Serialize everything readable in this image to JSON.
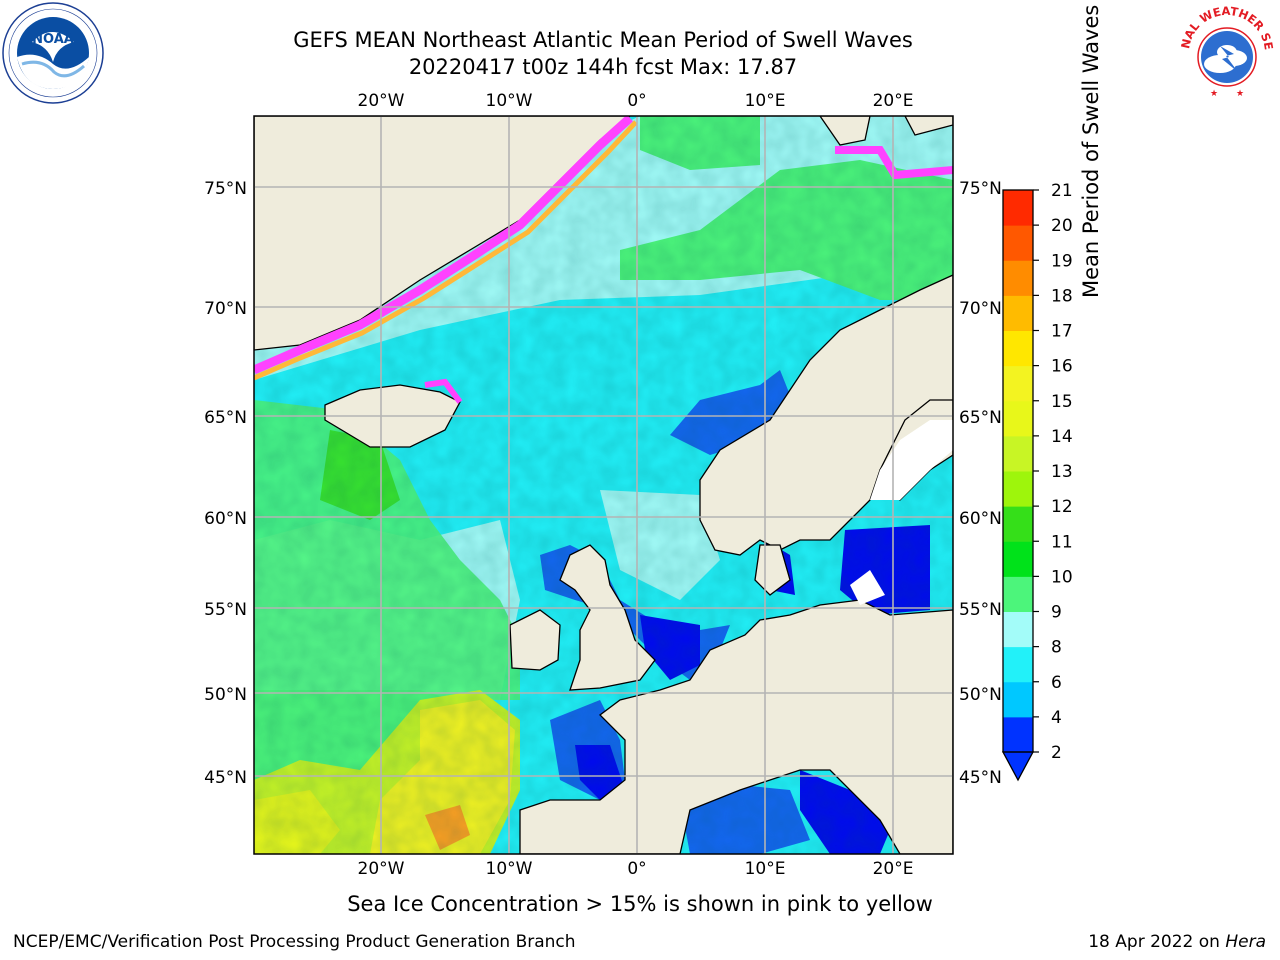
{
  "header": {
    "title_line1": "GEFS MEAN Northeast Atlantic Mean Period of Swell Waves",
    "title_line2": "20220417 t00z 144h fcst   Max: 17.87"
  },
  "map": {
    "lon_ticks_top": [
      "20°W",
      "10°W",
      "0°",
      "10°E",
      "20°E"
    ],
    "lon_ticks_bottom": [
      "20°W",
      "10°W",
      "0°",
      "10°E",
      "20°E"
    ],
    "lat_ticks_left": [
      "75°N",
      "70°N",
      "65°N",
      "60°N",
      "55°N",
      "50°N",
      "45°N"
    ],
    "lat_ticks_right": [
      "75°N",
      "70°N",
      "65°N",
      "60°N",
      "55°N",
      "50°N",
      "45°N"
    ],
    "colors": {
      "land": "#efecdc",
      "ocean_cyan": "#22f1f9",
      "ocean_light": "#a3fcf9",
      "ocean_green": "#4cf57b",
      "deep_blue": "#1466f2",
      "navy": "#0008f2",
      "yellow_green": "#c8f525",
      "yellow": "#f3f321",
      "orange": "#ffa020",
      "ice_pink": "#ff42ff",
      "ice_orange": "#ffb838",
      "grid": "#b4b4b4"
    }
  },
  "colorbar": {
    "label": "Mean Period of Swell Waves [s]",
    "ticks": [
      "2",
      "4",
      "6",
      "8",
      "9",
      "10",
      "11",
      "12",
      "13",
      "14",
      "15",
      "16",
      "17",
      "18",
      "19",
      "20",
      "21"
    ],
    "colors": [
      "#0033ff",
      "#00c8ff",
      "#22f1f9",
      "#a3fcf9",
      "#4cf57b",
      "#00e21a",
      "#35df19",
      "#9ef50c",
      "#c8f525",
      "#e8f71a",
      "#f3f321",
      "#ffe700",
      "#ffbb00",
      "#ff8c00",
      "#ff5800",
      "#ff2a00",
      "#f50000"
    ]
  },
  "caption": "Sea Ice Concentration > 15% is shown in pink to yellow",
  "footer": {
    "left": "NCEP/EMC/Verification Post Processing Product Generation Branch",
    "right_prefix": "18 Apr 2022 on ",
    "right_host": "Hera"
  },
  "logos": {
    "left": "noaa-logo",
    "right": "national-weather-service-logo",
    "nws_text": "NATIONAL WEATHER SERVICE"
  }
}
